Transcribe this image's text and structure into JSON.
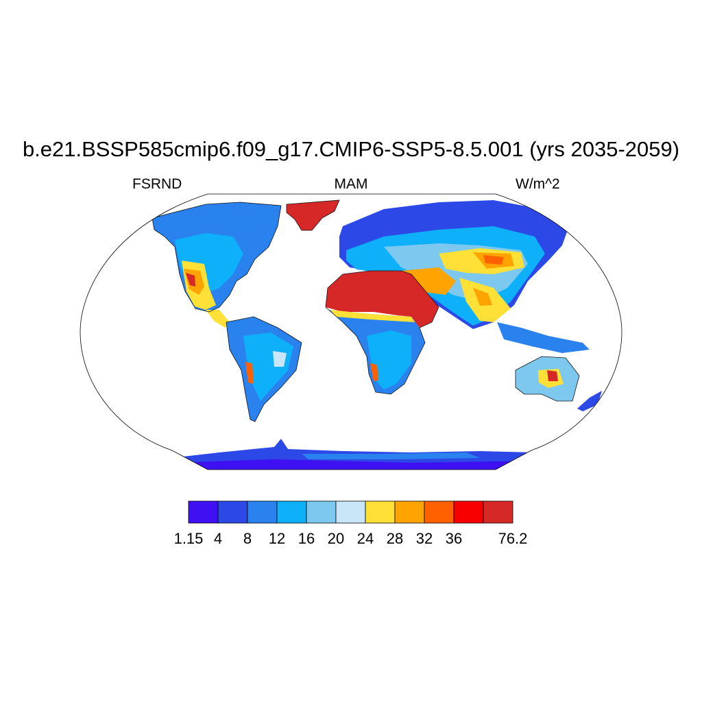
{
  "title": "b.e21.BSSP585cmip6.f09_g17.CMIP6-SSP5-8.5.001 (yrs 2035-2059)",
  "left_label": "FSRND",
  "center_label": "MAM",
  "right_label": "W/m^2",
  "colorbar": {
    "labels": [
      "1.15",
      "4",
      "8",
      "12",
      "16",
      "20",
      "24",
      "28",
      "32",
      "36",
      "76.2"
    ],
    "bounds": [
      1.15,
      4,
      8,
      12,
      16,
      20,
      24,
      28,
      32,
      36,
      null,
      76.2
    ],
    "colors": [
      "#3f10f2",
      "#2c48e6",
      "#2a82ee",
      "#0fb0fa",
      "#7cc8ef",
      "#c8e6f8",
      "#ffe036",
      "#ffa300",
      "#ff6100",
      "#f90000",
      "#d72828"
    ]
  }
}
